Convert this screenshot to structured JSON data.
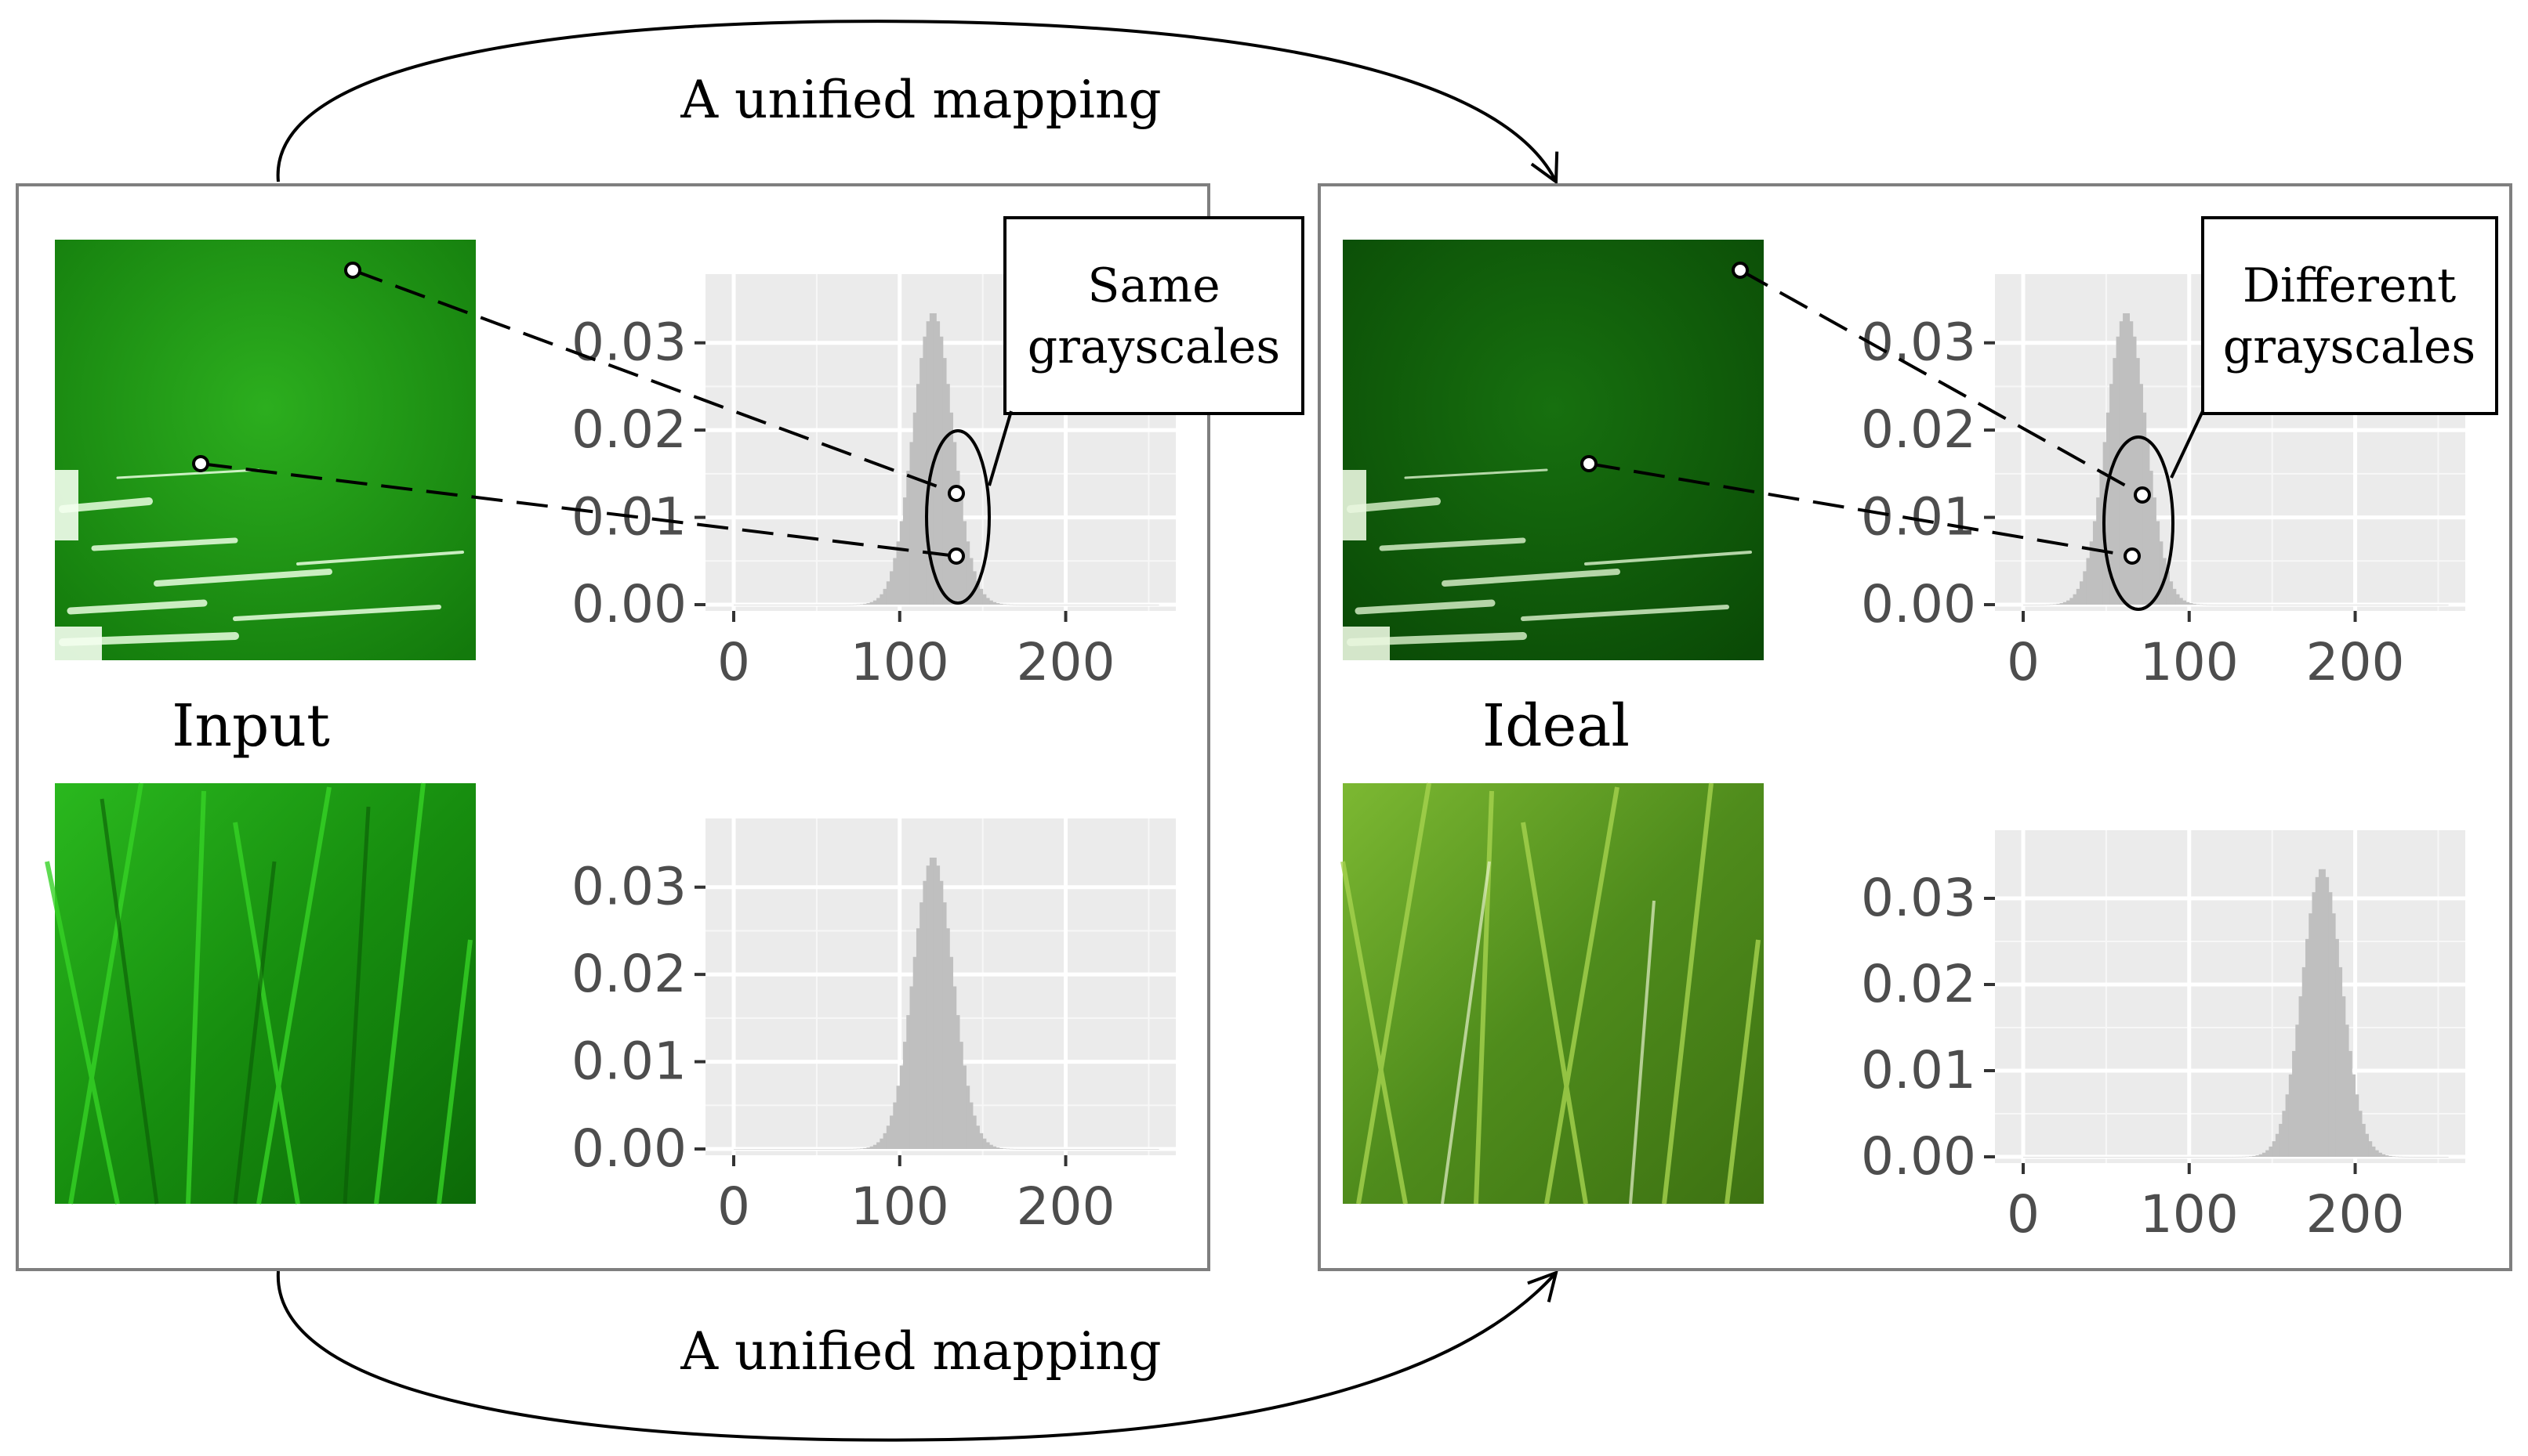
{
  "mapping_top_label": "A unified mapping",
  "mapping_bottom_label": "A unified mapping",
  "left_panel": {
    "label": "Input",
    "callout_line1": "Same",
    "callout_line2": "grayscales"
  },
  "right_panel": {
    "label": "Ideal",
    "callout_line1": "Different",
    "callout_line2": "grayscales"
  },
  "colors": {
    "panel_border": "#7f7f7f",
    "plot_bg": "#ebebeb",
    "hist_fill": "#bfbfbf",
    "tick_text": "#4d4d4d",
    "input_water": "#1f9a14",
    "ideal_water": "#0f5e0a",
    "input_grass": "#22a418",
    "ideal_grass": "#6aa12a"
  },
  "chart_data": [
    {
      "type": "area",
      "id": "input-top",
      "xlim": [
        0,
        255
      ],
      "ylim": [
        0,
        0.035
      ],
      "xticks": [
        "0",
        "100",
        "200"
      ],
      "yticks": [
        "0.00",
        "0.01",
        "0.02",
        "0.03"
      ],
      "mean": 120,
      "sd": 12,
      "peak": 0.0335
    },
    {
      "type": "area",
      "id": "input-bottom",
      "xlim": [
        0,
        255
      ],
      "ylim": [
        0,
        0.035
      ],
      "xticks": [
        "0",
        "100",
        "200"
      ],
      "yticks": [
        "0.00",
        "0.01",
        "0.02",
        "0.03"
      ],
      "mean": 120,
      "sd": 12,
      "peak": 0.0335
    },
    {
      "type": "area",
      "id": "ideal-top",
      "xlim": [
        0,
        255
      ],
      "ylim": [
        0,
        0.035
      ],
      "xticks": [
        "0",
        "100",
        "200"
      ],
      "yticks": [
        "0.00",
        "0.01",
        "0.02",
        "0.03"
      ],
      "mean": 62,
      "sd": 12,
      "peak": 0.0335
    },
    {
      "type": "area",
      "id": "ideal-bottom",
      "xlim": [
        0,
        255
      ],
      "ylim": [
        0,
        0.035
      ],
      "xticks": [
        "0",
        "100",
        "200"
      ],
      "yticks": [
        "0.00",
        "0.01",
        "0.02",
        "0.03"
      ],
      "mean": 180,
      "sd": 12,
      "peak": 0.0335
    }
  ]
}
